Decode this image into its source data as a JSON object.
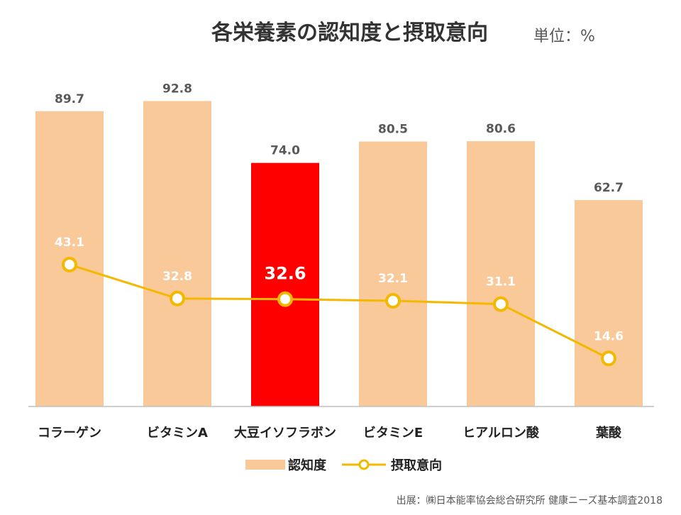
{
  "chart_data": {
    "type": "bar",
    "title": "各栄養素の認知度と摂取意向",
    "unit_label": "単位：%",
    "categories": [
      "コラーゲン",
      "ビタミンA",
      "大豆イソフラボン",
      "ビタミンE",
      "ヒアルロン酸",
      "葉酸"
    ],
    "series": [
      {
        "name": "認知度",
        "kind": "bar",
        "values": [
          89.7,
          92.8,
          74.0,
          80.5,
          80.6,
          62.7
        ],
        "value_labels": [
          "89.7",
          "92.8",
          "74.0",
          "80.5",
          "80.6",
          "62.7"
        ],
        "color": "#fac99a",
        "highlight_color": "#ff0000",
        "highlight_index": 2
      },
      {
        "name": "摂取意向",
        "kind": "line",
        "values": [
          43.1,
          32.8,
          32.6,
          32.1,
          31.1,
          14.6
        ],
        "value_labels": [
          "43.1",
          "32.8",
          "32.6",
          "32.1",
          "31.1",
          "14.6"
        ],
        "color": "#f5b800"
      }
    ],
    "ylim": [
      0,
      100
    ],
    "grid": false,
    "legend_position": "bottom"
  },
  "source": "出展：㈱日本能率協会総合研究所 健康ニーズ基本調査2018"
}
